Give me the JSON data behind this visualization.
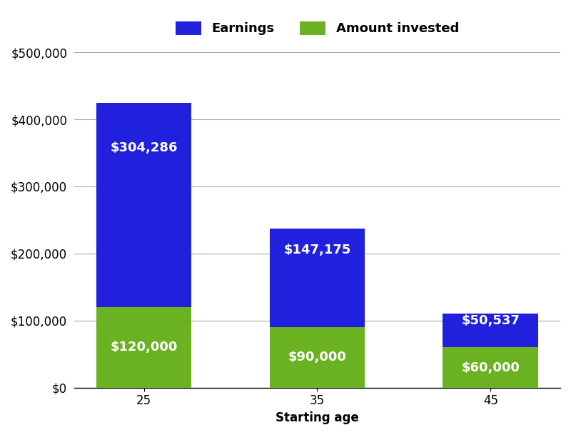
{
  "categories": [
    "25",
    "35",
    "45"
  ],
  "invested": [
    120000,
    90000,
    60000
  ],
  "earnings": [
    304286,
    147175,
    50537
  ],
  "invested_color": "#6ab221",
  "earnings_color": "#2020dd",
  "invested_labels": [
    "$120,000",
    "$90,000",
    "$60,000"
  ],
  "earnings_labels": [
    "$304,286",
    "$147,175",
    "$50,537"
  ],
  "xlabel": "Starting age",
  "ylim": [
    0,
    500000
  ],
  "yticks": [
    0,
    100000,
    200000,
    300000,
    400000,
    500000
  ],
  "legend_earnings": "Earnings",
  "legend_invested": "Amount invested",
  "bar_width": 0.55,
  "label_fontsize": 13,
  "axis_label_fontsize": 12,
  "tick_fontsize": 12,
  "legend_fontsize": 13,
  "background_color": "#ffffff",
  "grid_color": "#aaaaaa"
}
